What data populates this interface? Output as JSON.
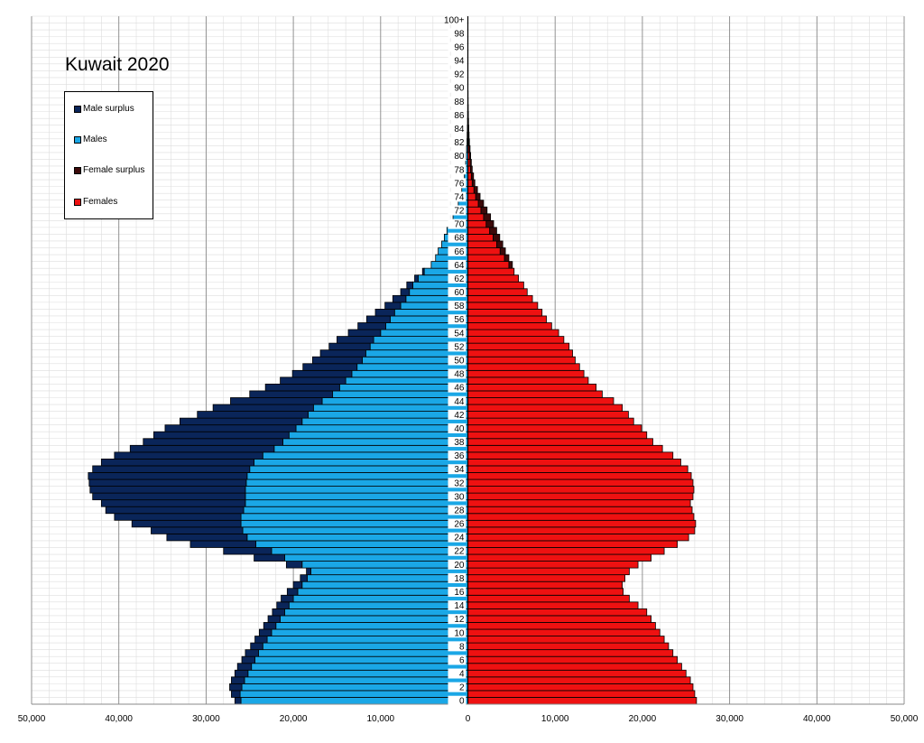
{
  "chart_data": {
    "type": "bar",
    "orientation": "horizontal",
    "title": "Kuwait 2020",
    "xlim": [
      -50000,
      50000
    ],
    "x_ticks": [
      -50000,
      -40000,
      -30000,
      -20000,
      -10000,
      0,
      10000,
      20000,
      30000,
      40000,
      50000
    ],
    "x_tick_labels": [
      "50,000",
      "40,000",
      "30,000",
      "20,000",
      "10,000",
      "0",
      "10,000",
      "20,000",
      "30,000",
      "40,000",
      "50,000"
    ],
    "y_tick_labels": [
      "0",
      "2",
      "4",
      "6",
      "8",
      "10",
      "12",
      "14",
      "16",
      "18",
      "20",
      "22",
      "24",
      "26",
      "28",
      "30",
      "32",
      "34",
      "36",
      "38",
      "40",
      "42",
      "44",
      "46",
      "48",
      "50",
      "52",
      "54",
      "56",
      "58",
      "60",
      "62",
      "64",
      "66",
      "68",
      "70",
      "72",
      "74",
      "76",
      "78",
      "80",
      "82",
      "84",
      "86",
      "88",
      "90",
      "92",
      "94",
      "96",
      "98",
      "100+"
    ],
    "categories": [
      "0",
      "1",
      "2",
      "3",
      "4",
      "5",
      "6",
      "7",
      "8",
      "9",
      "10",
      "11",
      "12",
      "13",
      "14",
      "15",
      "16",
      "17",
      "18",
      "19",
      "20",
      "21",
      "22",
      "23",
      "24",
      "25",
      "26",
      "27",
      "28",
      "29",
      "30",
      "31",
      "32",
      "33",
      "34",
      "35",
      "36",
      "37",
      "38",
      "39",
      "40",
      "41",
      "42",
      "43",
      "44",
      "45",
      "46",
      "47",
      "48",
      "49",
      "50",
      "51",
      "52",
      "53",
      "54",
      "55",
      "56",
      "57",
      "58",
      "59",
      "60",
      "61",
      "62",
      "63",
      "64",
      "65",
      "66",
      "67",
      "68",
      "69",
      "70",
      "71",
      "72",
      "73",
      "74",
      "75",
      "76",
      "77",
      "78",
      "79",
      "80",
      "81",
      "82",
      "83",
      "84",
      "85",
      "86",
      "87",
      "88",
      "89",
      "90",
      "91",
      "92",
      "93",
      "94",
      "95",
      "96",
      "97",
      "98",
      "99",
      "100+"
    ],
    "series": [
      {
        "name": "Male surplus",
        "color": "#0a2559",
        "values": [
          700,
          1000,
          1400,
          1500,
          1500,
          1600,
          1500,
          1500,
          1400,
          1400,
          1400,
          1400,
          1400,
          1400,
          1400,
          1400,
          1200,
          1000,
          800,
          500,
          1800,
          3500,
          5500,
          7500,
          9200,
          10500,
          12500,
          14500,
          15800,
          16500,
          17500,
          17800,
          18000,
          18200,
          18000,
          17500,
          17000,
          16500,
          16000,
          15500,
          15000,
          14000,
          12700,
          11500,
          10500,
          9500,
          8500,
          7500,
          6800,
          6200,
          5700,
          5200,
          4700,
          4200,
          3700,
          3200,
          2700,
          2200,
          1800,
          1500,
          1000,
          700,
          400,
          200,
          0,
          0,
          0,
          0,
          0,
          0,
          0,
          0,
          0,
          0,
          0,
          0,
          0,
          0,
          0,
          0,
          0,
          0,
          0,
          0,
          0,
          0,
          0,
          0,
          0,
          0,
          0,
          0,
          0,
          0,
          0,
          0,
          0,
          0,
          0,
          0,
          0
        ]
      },
      {
        "name": "Males",
        "color": "#1aa7e6",
        "values": [
          26000,
          26100,
          25900,
          25600,
          25200,
          24800,
          24400,
          24000,
          23500,
          23000,
          22500,
          22000,
          21500,
          21000,
          20500,
          20000,
          19500,
          19000,
          18400,
          18000,
          19000,
          21000,
          22500,
          24300,
          25300,
          25800,
          26000,
          26000,
          25700,
          25500,
          25500,
          25500,
          25400,
          25300,
          25000,
          24500,
          23500,
          22200,
          21200,
          20500,
          19700,
          19000,
          18300,
          17700,
          16700,
          15500,
          14700,
          14000,
          13300,
          12700,
          12100,
          11700,
          11200,
          10800,
          10000,
          9400,
          8900,
          8400,
          7700,
          7100,
          6700,
          6300,
          5700,
          5000,
          4200,
          3700,
          3400,
          3000,
          2700,
          2400,
          2100,
          1700,
          1400,
          1100,
          900,
          700,
          500,
          400,
          300,
          250,
          200,
          150,
          100,
          80,
          60,
          40,
          30,
          20,
          10,
          10,
          5,
          0,
          0,
          0,
          0,
          0,
          0,
          0,
          0,
          0,
          0
        ]
      },
      {
        "name": "Female surplus",
        "color": "#3d0a0a",
        "values": [
          0,
          0,
          0,
          0,
          0,
          0,
          0,
          0,
          0,
          0,
          0,
          0,
          0,
          0,
          0,
          0,
          0,
          0,
          0,
          0,
          0,
          0,
          0,
          0,
          0,
          0,
          0,
          0,
          0,
          0,
          0,
          0,
          0,
          0,
          0,
          0,
          0,
          0,
          0,
          0,
          0,
          0,
          0,
          0,
          0,
          0,
          0,
          0,
          0,
          0,
          0,
          0,
          0,
          0,
          0,
          0,
          0,
          0,
          0,
          0,
          0,
          0,
          0,
          0,
          400,
          500,
          600,
          700,
          750,
          800,
          850,
          800,
          700,
          600,
          500,
          400,
          300,
          250,
          200,
          150,
          120,
          100,
          80,
          60,
          50,
          40,
          30,
          20,
          15,
          10,
          5,
          0,
          0,
          0,
          0,
          0,
          0,
          0,
          0,
          0,
          0
        ]
      },
      {
        "name": "Females",
        "color": "#ee1111",
        "values": [
          26200,
          26000,
          25800,
          25500,
          25000,
          24500,
          24000,
          23500,
          23000,
          22500,
          22000,
          21500,
          21000,
          20500,
          19500,
          18500,
          17800,
          17700,
          18000,
          18500,
          19500,
          21000,
          22500,
          24000,
          25300,
          26000,
          26100,
          25900,
          25700,
          25500,
          25800,
          25900,
          25800,
          25600,
          25200,
          24400,
          23500,
          22300,
          21200,
          20500,
          19900,
          19000,
          18400,
          17700,
          16700,
          15400,
          14700,
          13800,
          13300,
          12800,
          12300,
          12000,
          11600,
          11000,
          10400,
          9600,
          9000,
          8500,
          8000,
          7400,
          6800,
          6400,
          5800,
          5300,
          4700,
          4200,
          3700,
          3300,
          2900,
          2500,
          2100,
          1800,
          1500,
          1200,
          900,
          700,
          500,
          400,
          300,
          250,
          200,
          150,
          100,
          80,
          60,
          40,
          30,
          20,
          10,
          10,
          5,
          0,
          0,
          0,
          0,
          0,
          0,
          0,
          0,
          0,
          0
        ]
      }
    ],
    "legend": [
      "Male surplus",
      "Males",
      "Female surplus",
      "Females"
    ],
    "legend_position": "top-left",
    "grid": true
  }
}
